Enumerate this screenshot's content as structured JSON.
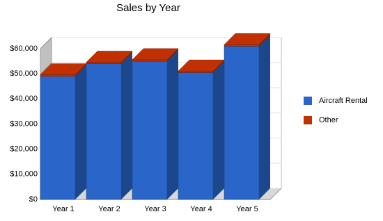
{
  "chart_data": {
    "type": "bar3d_stacked",
    "title": "Sales by Year",
    "categories": [
      "Year 1",
      "Year 2",
      "Year 3",
      "Year 4",
      "Year 5"
    ],
    "series": [
      {
        "name": "Aircraft Rental",
        "color": "#2a66c9",
        "values": [
          49000,
          54000,
          55000,
          50500,
          61000
        ]
      },
      {
        "name": "Other",
        "color": "#c03000",
        "values": [
          600,
          600,
          600,
          600,
          600
        ]
      }
    ],
    "ylim": [
      0,
      60000
    ],
    "yticks": [
      {
        "value": 0,
        "label": "$0"
      },
      {
        "value": 10000,
        "label": "$10,000"
      },
      {
        "value": 20000,
        "label": "$20,000"
      },
      {
        "value": 30000,
        "label": "$30,000"
      },
      {
        "value": 40000,
        "label": "$40,000"
      },
      {
        "value": 50000,
        "label": "$50,000"
      },
      {
        "value": 60000,
        "label": "$60,000"
      }
    ],
    "grid": true,
    "legend": "right"
  }
}
